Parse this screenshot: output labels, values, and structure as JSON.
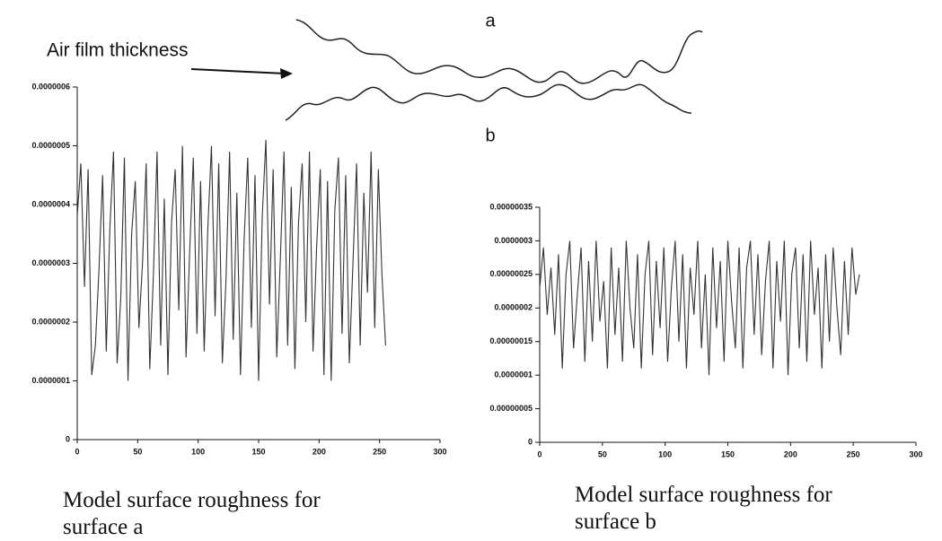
{
  "diagram": {
    "label": "Air film thickness",
    "surface_a": "a",
    "surface_b": "b"
  },
  "chart_data": [
    {
      "type": "line",
      "title": "Model surface roughness for surface a",
      "color": "#333333",
      "x": [
        0,
        3,
        6,
        9,
        12,
        15,
        18,
        21,
        24,
        27,
        30,
        33,
        36,
        39,
        42,
        45,
        48,
        51,
        54,
        57,
        60,
        63,
        66,
        69,
        72,
        75,
        78,
        81,
        84,
        87,
        90,
        93,
        96,
        99,
        102,
        105,
        108,
        111,
        114,
        117,
        120,
        123,
        126,
        129,
        132,
        135,
        138,
        141,
        144,
        147,
        150,
        153,
        156,
        159,
        162,
        165,
        168,
        171,
        174,
        177,
        180,
        183,
        186,
        189,
        192,
        195,
        198,
        201,
        204,
        207,
        210,
        213,
        216,
        219,
        222,
        225,
        228,
        231,
        234,
        237,
        240,
        243,
        246,
        249,
        252,
        255
      ],
      "values": [
        3.8e-07,
        4.7e-07,
        2.6e-07,
        4.6e-07,
        1.1e-07,
        1.6e-07,
        2.9e-07,
        4.5e-07,
        1.5e-07,
        3.6e-07,
        4.9e-07,
        1.3e-07,
        2.4e-07,
        4.8e-07,
        1e-07,
        3.5e-07,
        4.4e-07,
        1.9e-07,
        3e-07,
        4.7e-07,
        1.2e-07,
        2.8e-07,
        4.9e-07,
        1.6e-07,
        4.1e-07,
        1.1e-07,
        3.7e-07,
        4.6e-07,
        2.2e-07,
        5e-07,
        1.4e-07,
        3.2e-07,
        4.8e-07,
        1.8e-07,
        4.4e-07,
        1.5e-07,
        3.6e-07,
        5e-07,
        2.1e-07,
        4.7e-07,
        1.3e-07,
        2.7e-07,
        4.9e-07,
        1.7e-07,
        4.2e-07,
        1.1e-07,
        3.4e-07,
        4.8e-07,
        1.9e-07,
        4.5e-07,
        1e-07,
        3.8e-07,
        5.1e-07,
        2.3e-07,
        4.6e-07,
        1.4e-07,
        3.1e-07,
        4.9e-07,
        1.6e-07,
        4.3e-07,
        1.2e-07,
        3.7e-07,
        4.7e-07,
        2e-07,
        4.9e-07,
        1.5e-07,
        3.3e-07,
        4.6e-07,
        1.1e-07,
        4.4e-07,
        1e-07,
        3.9e-07,
        4.8e-07,
        1.8e-07,
        4.5e-07,
        1.3e-07,
        3e-07,
        4.7e-07,
        1.6e-07,
        4.2e-07,
        2.5e-07,
        4.9e-07,
        1.9e-07,
        4.6e-07,
        2.8e-07,
        1.6e-07
      ],
      "xlim": [
        0,
        300
      ],
      "xticks": [
        0,
        50,
        100,
        150,
        200,
        250,
        300
      ],
      "ylim": [
        0,
        6e-07
      ],
      "yticks": [
        0,
        {
          "value": 1e-07,
          "label": "0.0000001"
        },
        {
          "value": 2e-07,
          "label": "0.0000002"
        },
        {
          "value": 3e-07,
          "label": "0.0000003"
        },
        {
          "value": 4e-07,
          "label": "0.0000004"
        },
        {
          "value": 5e-07,
          "label": "0.0000005"
        },
        {
          "value": 6e-07,
          "label": "0.0000006"
        }
      ]
    },
    {
      "type": "line",
      "title": "Model surface roughness for surface b",
      "color": "#333333",
      "x": [
        0,
        3,
        6,
        9,
        12,
        15,
        18,
        21,
        24,
        27,
        30,
        33,
        36,
        39,
        42,
        45,
        48,
        51,
        54,
        57,
        60,
        63,
        66,
        69,
        72,
        75,
        78,
        81,
        84,
        87,
        90,
        93,
        96,
        99,
        102,
        105,
        108,
        111,
        114,
        117,
        120,
        123,
        126,
        129,
        132,
        135,
        138,
        141,
        144,
        147,
        150,
        153,
        156,
        159,
        162,
        165,
        168,
        171,
        174,
        177,
        180,
        183,
        186,
        189,
        192,
        195,
        198,
        201,
        204,
        207,
        210,
        213,
        216,
        219,
        222,
        225,
        228,
        231,
        234,
        237,
        240,
        243,
        246,
        249,
        252,
        255
      ],
      "values": [
        2.3e-07,
        2.9e-07,
        1.9e-07,
        2.6e-07,
        1.6e-07,
        2.8e-07,
        1.1e-07,
        2.5e-07,
        3e-07,
        1.4e-07,
        2.2e-07,
        2.9e-07,
        1.2e-07,
        2.7e-07,
        1.5e-07,
        3e-07,
        1.8e-07,
        2.4e-07,
        1.1e-07,
        2.9e-07,
        1.6e-07,
        2.6e-07,
        1.2e-07,
        3e-07,
        2e-07,
        1.4e-07,
        2.8e-07,
        1.1e-07,
        2.5e-07,
        3e-07,
        1.3e-07,
        2.7e-07,
        1.7e-07,
        2.9e-07,
        1.2e-07,
        2.3e-07,
        3e-07,
        1.5e-07,
        2.8e-07,
        1.1e-07,
        2.6e-07,
        1.9e-07,
        3e-07,
        1.4e-07,
        2.5e-07,
        1e-07,
        2.9e-07,
        1.7e-07,
        2.7e-07,
        1.2e-07,
        3e-07,
        2.1e-07,
        1.4e-07,
        2.9e-07,
        1.1e-07,
        2.6e-07,
        3e-07,
        1.6e-07,
        2.8e-07,
        1.3e-07,
        2.4e-07,
        3e-07,
        1.1e-07,
        2.7e-07,
        1.8e-07,
        3e-07,
        1e-07,
        2.5e-07,
        2.9e-07,
        1.4e-07,
        2.8e-07,
        1.2e-07,
        3e-07,
        1.9e-07,
        2.6e-07,
        1.1e-07,
        2.8e-07,
        1.5e-07,
        2.9e-07,
        2e-07,
        1.3e-07,
        2.7e-07,
        1.6e-07,
        2.9e-07,
        2.2e-07,
        2.5e-07
      ],
      "xlim": [
        0,
        300
      ],
      "xticks": [
        0,
        50,
        100,
        150,
        200,
        250,
        300
      ],
      "ylim": [
        0,
        3.5e-07
      ],
      "yticks": [
        0,
        {
          "value": 5e-08,
          "label": "0.00000005"
        },
        {
          "value": 1e-07,
          "label": "0.0000001"
        },
        {
          "value": 1.5e-07,
          "label": "0.00000015"
        },
        {
          "value": 2e-07,
          "label": "0.0000002"
        },
        {
          "value": 2.5e-07,
          "label": "0.00000025"
        },
        {
          "value": 3e-07,
          "label": "0.0000003"
        },
        {
          "value": 3.5e-07,
          "label": "0.00000035"
        }
      ]
    }
  ]
}
